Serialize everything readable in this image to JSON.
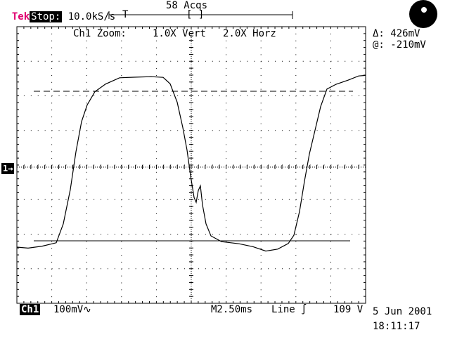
{
  "header": {
    "brand": "Tek",
    "state": "Stop:",
    "sample_rate": "10.0kS/s",
    "acquisitions": "58 Acqs",
    "trigger_marker": "T",
    "window_marker": "[ ]"
  },
  "zoom": {
    "channel": "Ch1 Zoom:",
    "vertical": "1.0X Vert",
    "horizontal": "2.0X Horz"
  },
  "cursor_readout": {
    "delta": "Δ: 426mV",
    "at": "@: -210mV"
  },
  "channel_marker": "1→",
  "footer": {
    "channel": "Ch1",
    "volts_per_div": "100mV∿",
    "timebase": "M2.50ms",
    "trigger_source": "Line ∫",
    "line_voltage": "109 V",
    "date": "5 Jun 2001",
    "time": "18:11:17"
  },
  "knob_icon": "run-stop-indicator-icon",
  "trace_color": "#000000"
}
